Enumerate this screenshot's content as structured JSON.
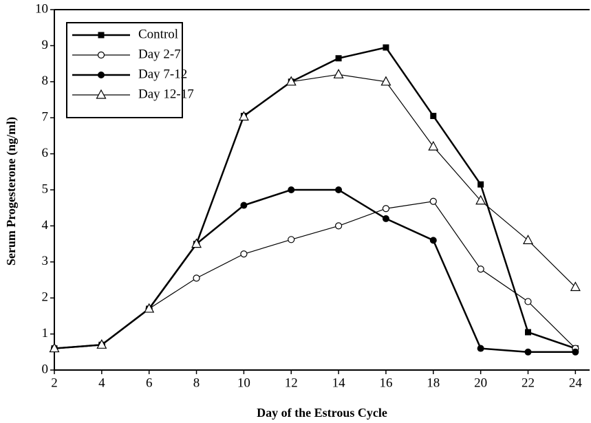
{
  "chart_data": {
    "type": "line",
    "x_label": "Day of the Estrous Cycle",
    "y_label": "Serum Progesterone (ng/ml)",
    "x": [
      2,
      4,
      6,
      8,
      10,
      12,
      14,
      16,
      18,
      20,
      22,
      24
    ],
    "xlim": [
      2,
      24.6
    ],
    "xticks": [
      2,
      4,
      6,
      8,
      10,
      12,
      14,
      16,
      18,
      20,
      22,
      24
    ],
    "ylim": [
      0,
      10
    ],
    "yticks": [
      0,
      1,
      2,
      3,
      4,
      5,
      6,
      7,
      8,
      9,
      10
    ],
    "legend": "top-left",
    "series": [
      {
        "name": "Control",
        "color": "#000000",
        "marker": "square",
        "line_width": 2.5,
        "values": [
          0.6,
          0.7,
          1.7,
          3.5,
          7.05,
          8.0,
          8.65,
          8.95,
          7.05,
          5.15,
          1.05,
          0.6
        ]
      },
      {
        "name": "Day 2-7",
        "color": "#000000",
        "marker": "circle-open",
        "line_width": 1.2,
        "values": [
          0.6,
          0.7,
          1.7,
          2.55,
          3.22,
          3.62,
          4.0,
          4.48,
          4.68,
          2.8,
          1.9,
          0.6
        ]
      },
      {
        "name": "Day 7-12",
        "color": "#000000",
        "marker": "circle",
        "line_width": 2.5,
        "values": [
          0.6,
          0.7,
          1.7,
          3.5,
          4.57,
          5.0,
          5.0,
          4.2,
          3.6,
          0.6,
          0.5,
          0.5
        ]
      },
      {
        "name": "Day 12-17",
        "color": "#000000",
        "marker": "triangle-open",
        "line_width": 1.2,
        "values": [
          0.6,
          0.7,
          1.7,
          3.5,
          7.03,
          8.0,
          8.2,
          8.0,
          6.2,
          4.7,
          3.6,
          2.3
        ]
      }
    ]
  }
}
